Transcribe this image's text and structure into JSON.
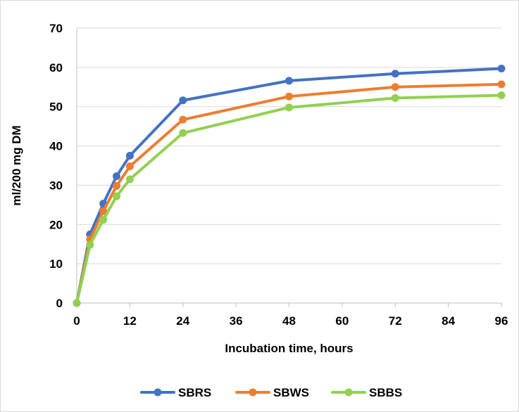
{
  "chart_data": {
    "type": "line",
    "title": "",
    "xlabel": "Incubation time, hours",
    "ylabel": "ml/200 mg DM",
    "xlim": [
      0,
      96
    ],
    "ylim": [
      0,
      70
    ],
    "xticks": [
      0,
      12,
      24,
      36,
      48,
      60,
      72,
      84,
      96
    ],
    "yticks": [
      0,
      10,
      20,
      30,
      40,
      50,
      60,
      70
    ],
    "x": [
      0,
      3,
      6,
      9,
      12,
      24,
      48,
      72,
      96
    ],
    "grid": "horizontal",
    "legend_position": "bottom",
    "series": [
      {
        "name": "SBRS",
        "color": "#4472c4",
        "values": [
          0,
          17.5,
          25.3,
          32.3,
          37.5,
          51.6,
          56.6,
          58.4,
          59.7
        ]
      },
      {
        "name": "SBWS",
        "color": "#ed7d31",
        "values": [
          0,
          16.2,
          23.4,
          29.8,
          34.8,
          46.7,
          52.6,
          55.0,
          55.7
        ]
      },
      {
        "name": "SBBS",
        "color": "#92d050",
        "values": [
          0,
          14.8,
          21.2,
          27.2,
          31.5,
          43.3,
          49.8,
          52.2,
          52.9
        ]
      }
    ]
  }
}
